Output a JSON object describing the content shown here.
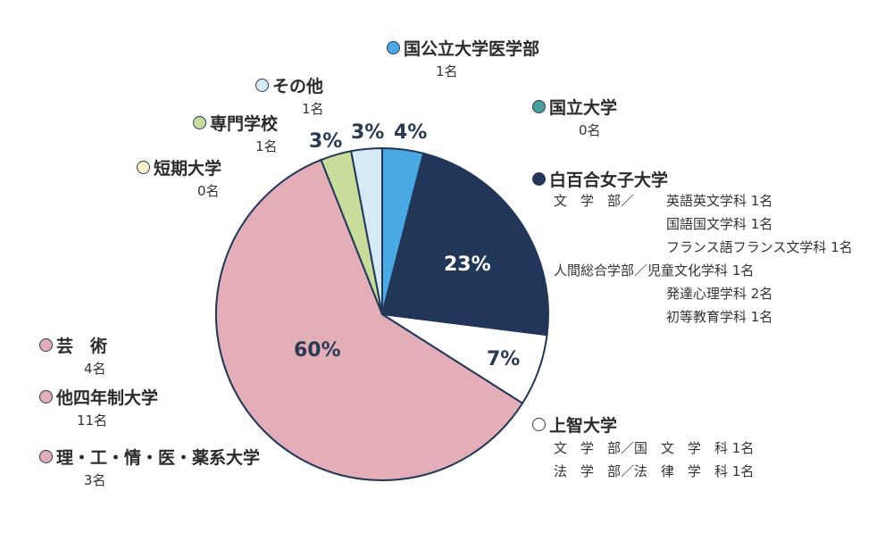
{
  "chart_data": {
    "type": "pie",
    "slices": [
      {
        "label": "国公立大学医学部",
        "count": "1名",
        "value": 4,
        "color": "#4aa8e3"
      },
      {
        "label": "国立大学",
        "count": "0名",
        "value": 0,
        "color": "#4a9e9b"
      },
      {
        "label": "白百合女子大学",
        "value": 23,
        "color": "#213658"
      },
      {
        "label": "上智大学",
        "value": 7,
        "color": "#ffffff"
      },
      {
        "label": "理・工・情・医・薬系大学",
        "count": "3名",
        "value": null,
        "color": "#e3aeb7"
      },
      {
        "label": "他四年制大学",
        "count": "11名",
        "value": null,
        "color": "#e3aeb7"
      },
      {
        "label": "芸　術",
        "count": "4名",
        "value": null,
        "color": "#e3aeb7"
      },
      {
        "label": "短期大学",
        "count": "0名",
        "value": 0,
        "color": "#f7f0c8"
      },
      {
        "label": "専門学校",
        "count": "1名",
        "value": 3,
        "color": "#c8dc9c"
      },
      {
        "label": "その他",
        "count": "1名",
        "value": 3,
        "color": "#d6e9f7"
      }
    ],
    "combined_percent_label": "60%",
    "combined_value": 60,
    "percent_labels": [
      "4%",
      "23%",
      "7%",
      "60%",
      "3%",
      "3%"
    ]
  },
  "details": {
    "shirayuri": [
      {
        "dept": "文　学　部／",
        "major": "英語英文学科",
        "count": "1名"
      },
      {
        "dept": "",
        "major": "国語国文学科",
        "count": "1名"
      },
      {
        "dept": "",
        "major": "フランス語フランス文学科",
        "count": "1名"
      },
      {
        "dept": "人間総合学部／",
        "major": "児童文化学科",
        "count": "1名"
      },
      {
        "dept": "",
        "major": "発達心理学科",
        "count": "2名"
      },
      {
        "dept": "",
        "major": "初等教育学科",
        "count": "1名"
      }
    ],
    "sophia": [
      {
        "text": "文　学　部／国　文　学　科 1名"
      },
      {
        "text": "法　学　部／法　律　学　科 1名"
      }
    ]
  }
}
